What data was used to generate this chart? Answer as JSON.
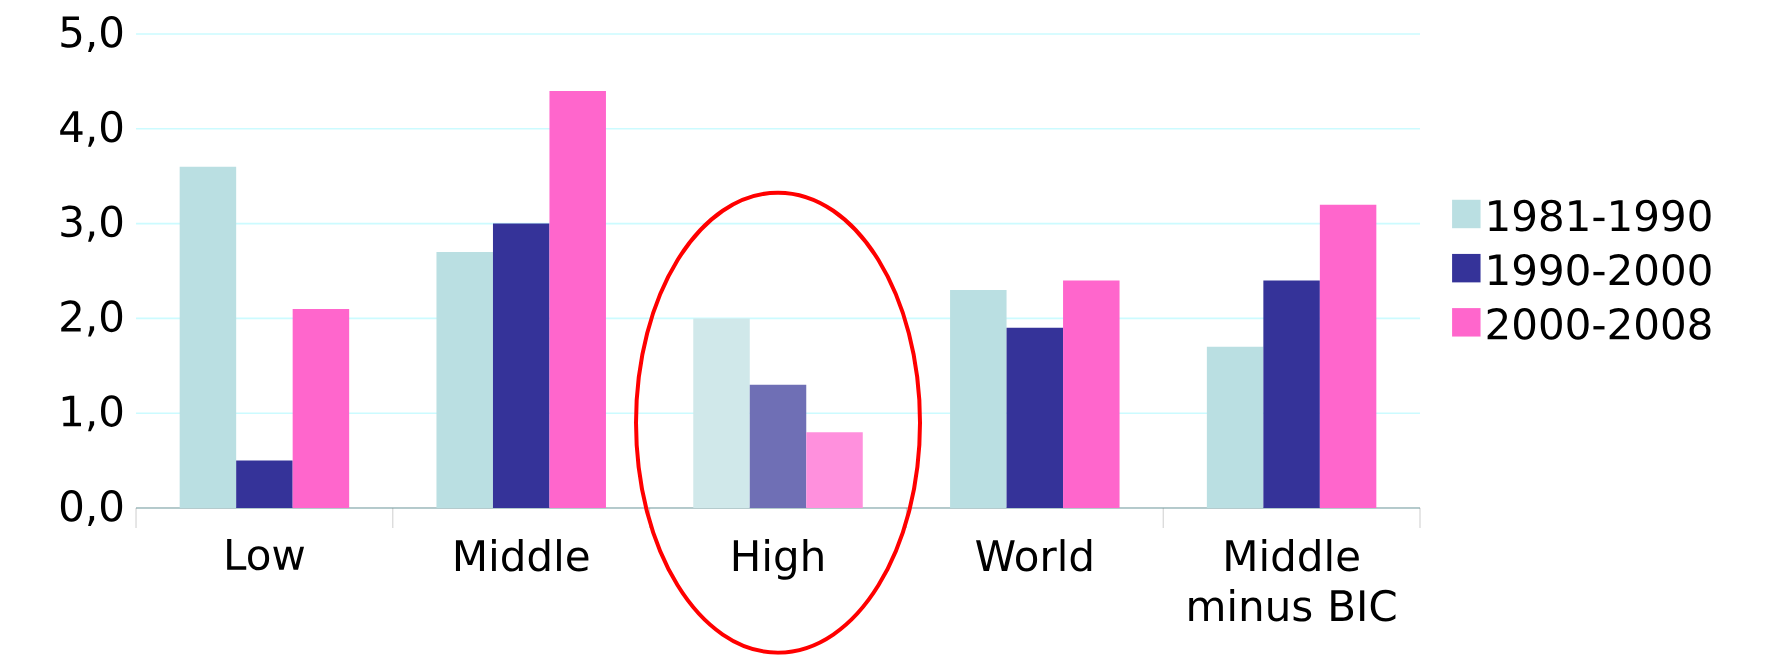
{
  "chart_data": {
    "type": "bar",
    "categories": [
      "Low",
      "Middle",
      "High",
      "World",
      "Middle minus BIC"
    ],
    "series": [
      {
        "name": "1981-1990",
        "color": "#badfe2",
        "colors": [
          "#badfe2",
          "#badfe2",
          "#d0e8ea",
          "#badfe2",
          "#badfe2"
        ],
        "values": [
          3.6,
          2.7,
          2.0,
          2.3,
          1.7
        ]
      },
      {
        "name": "1990-2000",
        "color": "#353399",
        "colors": [
          "#353399",
          "#353399",
          "#6f6fb5",
          "#353399",
          "#353399"
        ],
        "values": [
          0.5,
          3.0,
          1.3,
          1.9,
          2.4
        ]
      },
      {
        "name": "2000-2008",
        "color": "#ff66cc",
        "colors": [
          "#ff66cc",
          "#ff66cc",
          "#ff90dd",
          "#ff66cc",
          "#ff66cc"
        ],
        "values": [
          2.1,
          4.4,
          0.8,
          2.4,
          3.2
        ]
      }
    ],
    "ylim": [
      0,
      5
    ],
    "yticks": [
      {
        "value": 0,
        "label": "0,0"
      },
      {
        "value": 1,
        "label": "1,0"
      },
      {
        "value": 2,
        "label": "2,0"
      },
      {
        "value": 3,
        "label": "3,0"
      },
      {
        "value": 4,
        "label": "4,0"
      },
      {
        "value": 5,
        "label": "5,0"
      }
    ],
    "grid": "y",
    "legend": "right"
  }
}
